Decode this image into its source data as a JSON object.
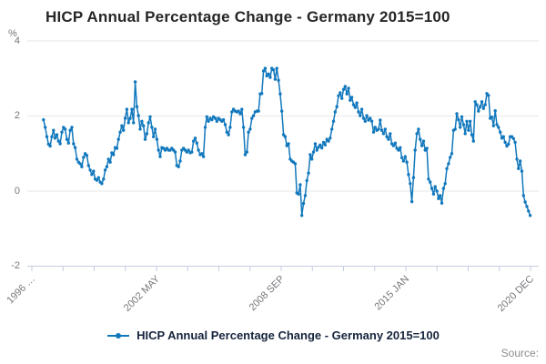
{
  "title": "HICP Annual Percentage Change - Germany 2015=100",
  "y_axis": {
    "unit": "%",
    "ticks": [
      4,
      2,
      0,
      -2
    ]
  },
  "x_axis": {
    "tick_labels": [
      "1996 …",
      "2002 MAY",
      "2008 SEP",
      "2015 JAN",
      "2020 DEC"
    ]
  },
  "legend": {
    "label": "HICP Annual Percentage Change - Germany 2015=100"
  },
  "source": {
    "label": "Source:"
  },
  "colors": {
    "line": "#1278bd",
    "grid": "#e7e7e7",
    "axis": "#c3cce0",
    "title": "#262626",
    "tick_label": "#76777b",
    "legend_text": "#16243d",
    "source_text": "#8c8c8c"
  },
  "chart_data": {
    "type": "line",
    "title": "HICP Annual Percentage Change - Germany 2015=100",
    "ylabel": "%",
    "ylim": [
      -2,
      4
    ],
    "frequency": "monthly",
    "start": "1996-08",
    "end": "2020-12",
    "x_tick_labels": [
      "1996 …",
      "2002 MAY",
      "2008 SEP",
      "2015 JAN",
      "2020 DEC"
    ],
    "grid": "horizontal",
    "legend_position": "bottom",
    "marker": "circle",
    "values": [
      1.9,
      1.7,
      1.45,
      1.25,
      1.2,
      1.45,
      1.62,
      1.41,
      1.5,
      1.33,
      1.26,
      1.57,
      1.7,
      1.65,
      1.38,
      1.28,
      1.62,
      1.7,
      1.26,
      1.16,
      0.85,
      0.77,
      0.73,
      0.65,
      0.9,
      1.0,
      0.95,
      0.68,
      0.56,
      0.44,
      0.53,
      0.32,
      0.29,
      0.36,
      0.24,
      0.2,
      0.32,
      0.56,
      0.65,
      0.85,
      0.77,
      1.02,
      0.97,
      1.16,
      1.14,
      1.38,
      1.57,
      1.74,
      1.62,
      1.94,
      2.18,
      1.82,
      1.94,
      2.18,
      1.82,
      2.91,
      2.25,
      2.01,
      1.65,
      1.86,
      1.74,
      1.38,
      1.53,
      1.82,
      1.98,
      1.7,
      1.45,
      1.65,
      1.38,
      1.09,
      0.92,
      1.16,
      1.14,
      1.09,
      1.14,
      1.09,
      1.09,
      1.14,
      1.09,
      1.04,
      0.68,
      0.65,
      0.8,
      1.09,
      1.14,
      1.09,
      1.04,
      1.09,
      1.02,
      1.04,
      1.33,
      1.41,
      1.28,
      1.09,
      0.97,
      1.0,
      0.92,
      1.7,
      1.98,
      1.86,
      1.94,
      1.9,
      1.98,
      1.94,
      1.86,
      1.94,
      1.9,
      1.86,
      1.9,
      1.77,
      1.57,
      1.5,
      1.7,
      2.11,
      2.18,
      2.13,
      2.11,
      2.13,
      2.06,
      2.18,
      1.7,
      0.97,
      1.04,
      1.57,
      1.65,
      1.94,
      2.01,
      2.11,
      2.13,
      2.13,
      2.59,
      2.6,
      3.2,
      3.27,
      3.07,
      3.12,
      3.03,
      3.27,
      3.23,
      2.98,
      3.27,
      2.95,
      2.59,
      2.13,
      1.5,
      1.45,
      1.21,
      1.26,
      0.85,
      0.8,
      0.77,
      0.73,
      -0.05,
      -0.08,
      0.17,
      -0.65,
      -0.33,
      -0.12,
      0.28,
      0.48,
      0.97,
      0.85,
      1.04,
      1.26,
      1.09,
      1.17,
      1.23,
      1.15,
      1.3,
      1.23,
      1.38,
      1.33,
      1.41,
      1.65,
      1.86,
      2.11,
      2.25,
      2.54,
      2.62,
      2.47,
      2.71,
      2.79,
      2.59,
      2.74,
      2.42,
      2.5,
      2.3,
      2.23,
      2.35,
      2.11,
      2.01,
      2.18,
      1.94,
      1.86,
      2.01,
      1.89,
      1.94,
      1.86,
      1.57,
      1.7,
      1.62,
      1.65,
      1.89,
      1.62,
      1.53,
      1.65,
      1.45,
      1.38,
      1.53,
      1.26,
      1.21,
      1.28,
      1.14,
      1.09,
      1.16,
      0.89,
      0.8,
      0.92,
      0.77,
      0.44,
      0.2,
      -0.28,
      0.36,
      1.09,
      1.53,
      1.65,
      1.38,
      1.21,
      1.33,
      1.09,
      1.14,
      0.32,
      0.24,
      0.07,
      -0.08,
      0.12,
      0.0,
      -0.2,
      -0.12,
      -0.32,
      0.07,
      0.2,
      0.6,
      0.73,
      0.9,
      1.0,
      1.62,
      1.65,
      2.06,
      1.9,
      1.7,
      1.98,
      1.77,
      1.53,
      1.86,
      1.62,
      1.86,
      1.5,
      1.33,
      2.38,
      2.3,
      2.13,
      2.25,
      2.38,
      2.2,
      2.3,
      2.6,
      2.55,
      1.94,
      1.97,
      1.74,
      2.14,
      1.77,
      1.7,
      1.57,
      1.41,
      1.45,
      1.3,
      1.2,
      1.25,
      1.45,
      1.45,
      1.4,
      1.3,
      0.85,
      0.6,
      0.8,
      0.53,
      -0.12,
      -0.29,
      -0.41,
      -0.53,
      -0.65
    ]
  }
}
